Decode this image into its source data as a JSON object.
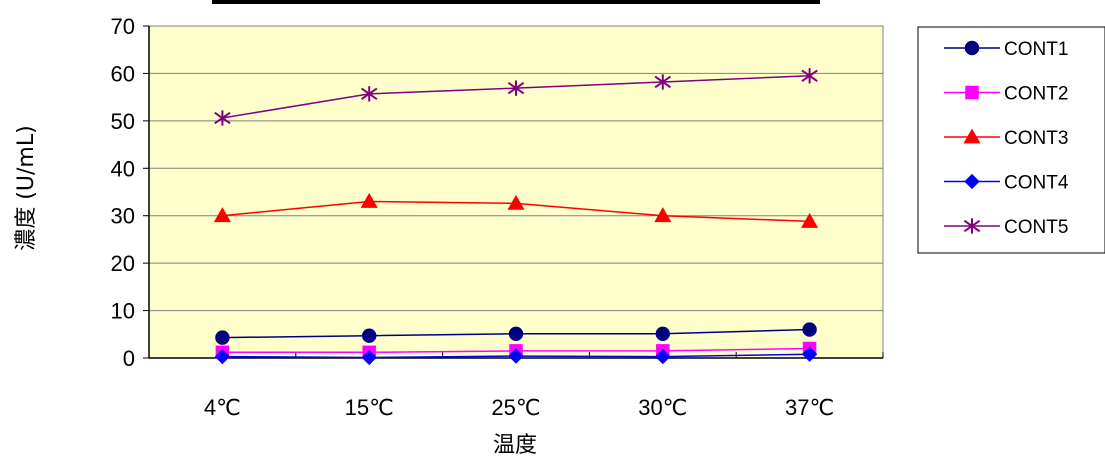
{
  "chart_data": {
    "type": "line",
    "title": "",
    "xlabel": "温度",
    "ylabel": "濃度 (U/mL)",
    "categories": [
      "4℃",
      "15℃",
      "25℃",
      "30℃",
      "37℃"
    ],
    "ylim": [
      0,
      70
    ],
    "yticks": [
      0,
      10,
      20,
      30,
      40,
      50,
      60,
      70
    ],
    "grid": "horizontal",
    "legend_position": "right",
    "plot_background": "#ffffcc",
    "series": [
      {
        "name": "CONT1",
        "color": "#000080",
        "marker": "circle",
        "values": [
          4.3,
          4.7,
          5.1,
          5.1,
          6.0
        ]
      },
      {
        "name": "CONT2",
        "color": "#ff00ff",
        "marker": "square",
        "values": [
          1.2,
          1.2,
          1.5,
          1.5,
          2.0
        ]
      },
      {
        "name": "CONT3",
        "color": "#ff0000",
        "marker": "triangle",
        "values": [
          30.0,
          33.0,
          32.6,
          30.0,
          28.8
        ]
      },
      {
        "name": "CONT4",
        "color": "#0000ff",
        "marker": "diamond",
        "values": [
          0.3,
          0.1,
          0.4,
          0.3,
          0.8
        ]
      },
      {
        "name": "CONT5",
        "color": "#800080",
        "marker": "asterisk",
        "values": [
          50.6,
          55.7,
          56.9,
          58.2,
          59.5
        ]
      }
    ]
  }
}
